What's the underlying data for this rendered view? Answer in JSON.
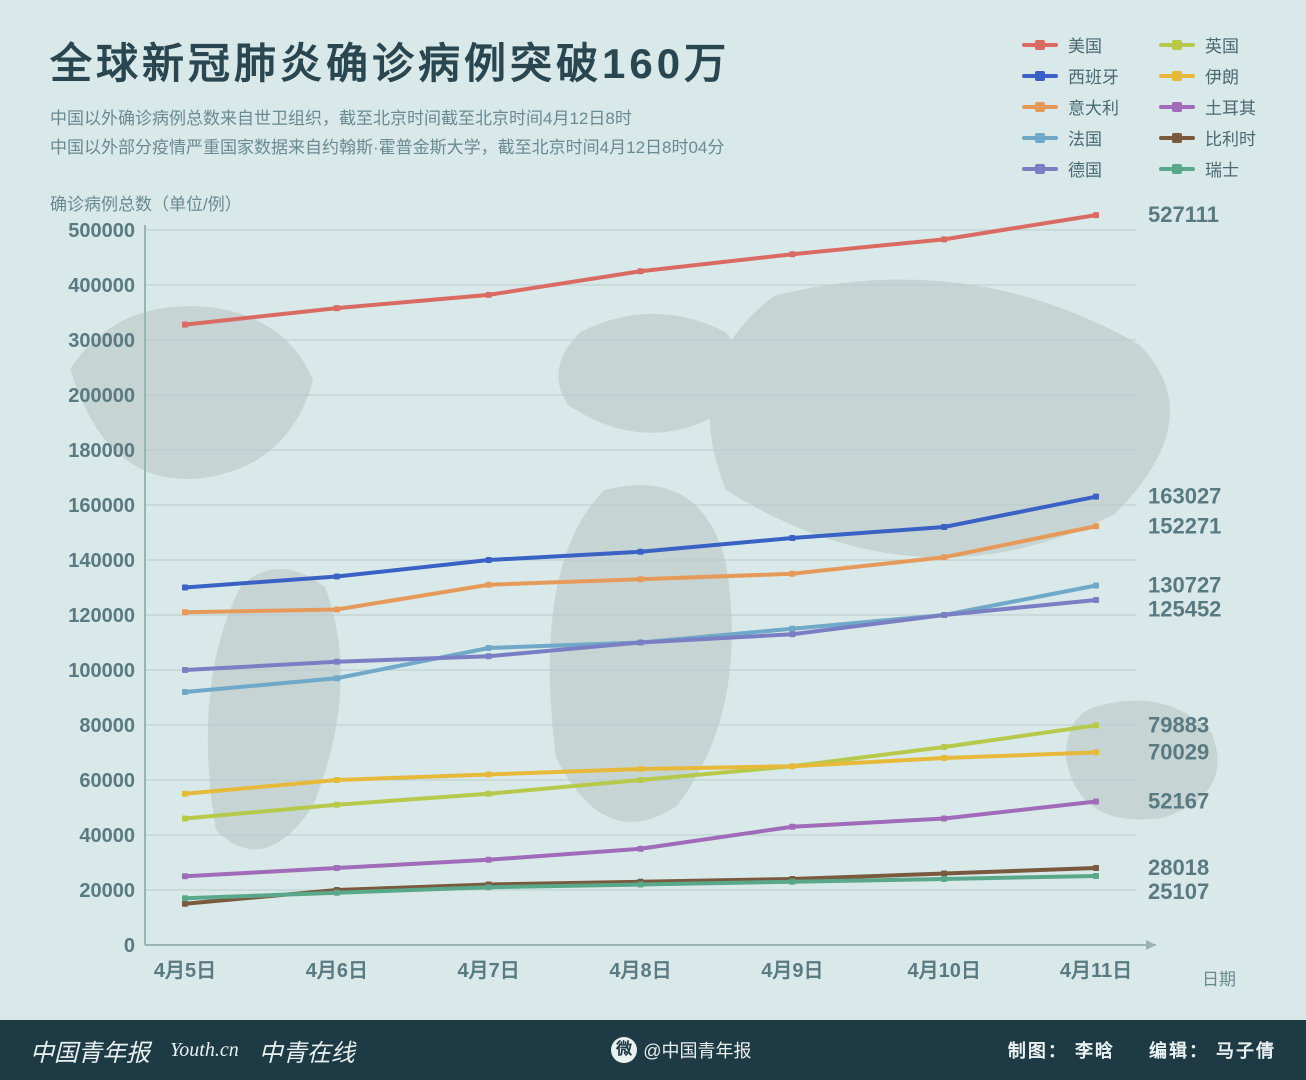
{
  "title": "全球新冠肺炎确诊病例突破160万",
  "subtitle_line1": "中国以外确诊病例总数来自世卫组织，截至北京时间截至北京时间4月12日8时",
  "subtitle_line2": "中国以外部分疫情严重国家数据来自约翰斯·霍普金斯大学，截至北京时间4月12日8时04分",
  "ylabel": "确诊病例总数（单位/例）",
  "xlabel": "日期",
  "background_color": "#d9e8e8",
  "title_color": "#2a4650",
  "subtitle_color": "#6a8a92",
  "grid_color": "#b8cccc",
  "title_fontsize": 42,
  "subtitle_fontsize": 17,
  "axis_fontsize": 20,
  "endlabel_fontsize": 22,
  "line_width": 4,
  "marker_size": 6,
  "chart": {
    "type": "line",
    "x_categories": [
      "4月5日",
      "4月6日",
      "4月7日",
      "4月8日",
      "4月9日",
      "4月10日",
      "4月11日"
    ],
    "y_ticks": [
      0,
      20000,
      40000,
      60000,
      80000,
      100000,
      120000,
      140000,
      160000,
      180000,
      200000,
      300000,
      400000,
      500000
    ],
    "y_scale_breaks": true,
    "series": [
      {
        "name": "美国",
        "color": "#d96b63",
        "data": [
          328000,
          358000,
          382000,
          425000,
          456000,
          483000,
          527111
        ],
        "end_label": "527111"
      },
      {
        "name": "西班牙",
        "color": "#3a62c4",
        "data": [
          130000,
          134000,
          140000,
          143000,
          148000,
          152000,
          163027
        ],
        "end_label": "163027"
      },
      {
        "name": "意大利",
        "color": "#e69a5a",
        "data": [
          121000,
          122000,
          131000,
          133000,
          135000,
          141000,
          152271
        ],
        "end_label": "152271"
      },
      {
        "name": "法国",
        "color": "#6fa8c8",
        "data": [
          92000,
          97000,
          108000,
          110000,
          115000,
          120000,
          130727
        ],
        "end_label": "130727"
      },
      {
        "name": "德国",
        "color": "#7a7fc4",
        "data": [
          100000,
          103000,
          105000,
          110000,
          113000,
          120000,
          125452
        ],
        "end_label": "125452"
      },
      {
        "name": "英国",
        "color": "#b6c94a",
        "data": [
          46000,
          51000,
          55000,
          60000,
          65000,
          72000,
          79883
        ],
        "end_label": "79883"
      },
      {
        "name": "伊朗",
        "color": "#e6b93a",
        "data": [
          55000,
          60000,
          62000,
          64000,
          65000,
          68000,
          70029
        ],
        "end_label": "70029"
      },
      {
        "name": "土耳其",
        "color": "#a06bb8",
        "data": [
          25000,
          28000,
          31000,
          35000,
          43000,
          46000,
          52167
        ],
        "end_label": "52167"
      },
      {
        "name": "比利时",
        "color": "#7a5a3f",
        "data": [
          15000,
          20000,
          22000,
          23000,
          24000,
          26000,
          28018
        ],
        "end_label": "28018"
      },
      {
        "name": "瑞士",
        "color": "#5aa88a",
        "data": [
          17000,
          19000,
          21000,
          22000,
          23000,
          24000,
          25107
        ],
        "end_label": "25107"
      }
    ],
    "legend_order_left": [
      "美国",
      "西班牙",
      "意大利",
      "法国",
      "德国"
    ],
    "legend_order_right": [
      "英国",
      "伊朗",
      "土耳其",
      "比利时",
      "瑞士"
    ]
  },
  "footer": {
    "brand1": "中国青年报",
    "brand2": "Youth.cn",
    "brand3": "中青在线",
    "weibo": "@中国青年报",
    "credits_label1": "制图：",
    "credits_name1": "李晗",
    "credits_label2": "编辑：",
    "credits_name2": "马子倩",
    "bg_color": "#1e3a45",
    "text_color": "#e8f0f0"
  }
}
